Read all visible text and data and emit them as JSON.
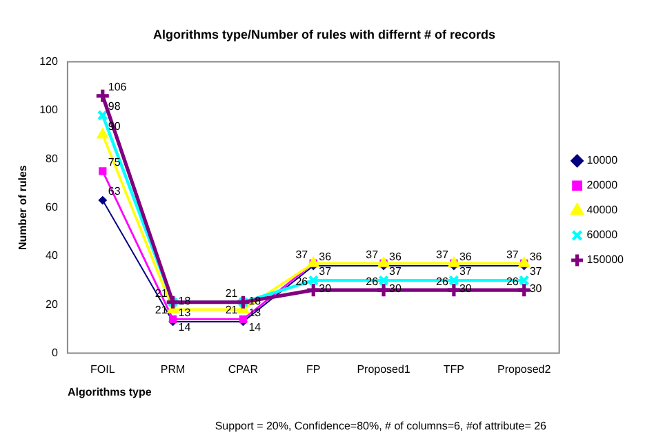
{
  "chart_data": {
    "type": "line",
    "title": "Algorithms type/Number of rules with differnt # of records",
    "xlabel": "Algorithms type",
    "ylabel": "Number of rules",
    "categories": [
      "FOIL",
      "PRM",
      "CPAR",
      "FP",
      "Proposed1",
      "TFP",
      "Proposed2"
    ],
    "series": [
      {
        "name": "10000",
        "color": "#000080",
        "marker": "diamond",
        "values": [
          63,
          13,
          13,
          36,
          36,
          36,
          36
        ]
      },
      {
        "name": "20000",
        "color": "#ff00ff",
        "marker": "square",
        "values": [
          75,
          14,
          14,
          37,
          37,
          37,
          37
        ]
      },
      {
        "name": "40000",
        "color": "#ffff00",
        "marker": "triangle",
        "values": [
          90,
          18,
          18,
          37,
          37,
          37,
          37
        ]
      },
      {
        "name": "60000",
        "color": "#00ffff",
        "marker": "cross",
        "values": [
          98,
          21,
          21,
          30,
          30,
          30,
          30
        ]
      },
      {
        "name": "150000",
        "color": "#800080",
        "marker": "cross",
        "values": [
          106,
          21,
          21,
          26,
          26,
          26,
          26
        ]
      }
    ],
    "ylim": [
      0,
      120
    ],
    "yticks": [
      0,
      20,
      40,
      60,
      80,
      100,
      120
    ],
    "grid": false,
    "legend": "right",
    "data_labels": true,
    "annotations": [
      "Support = 20%, Confidence=80%, # of columns=6, #of attribute= 26"
    ]
  }
}
